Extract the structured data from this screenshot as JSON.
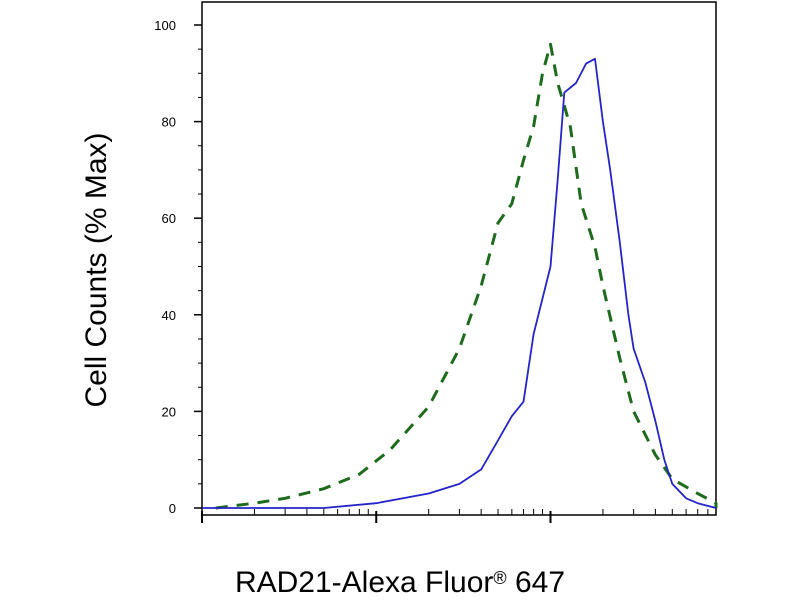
{
  "chart_data": {
    "type": "line",
    "title": "",
    "xlabel": "RAD21-Alexa Fluor",
    "xlabel_superscript": "®",
    "xlabel_suffix": " 647",
    "ylabel": "Cell Counts (% Max)",
    "xscale": "log",
    "xlim": [
      1,
      10000
    ],
    "ylim": [
      0,
      100
    ],
    "yticks": [
      0,
      20,
      40,
      60,
      80,
      100
    ],
    "ytick_labels": [
      "0",
      "20",
      "40",
      "60",
      "80",
      "100"
    ],
    "grid": false,
    "legend": "none",
    "series": [
      {
        "style": "dashed",
        "color": "#1e6b1e",
        "x": [
          1.2,
          2,
          3,
          5,
          8,
          12,
          20,
          30,
          40,
          50,
          60,
          70,
          80,
          90,
          100,
          110,
          130,
          150,
          180,
          200,
          250,
          300,
          400,
          500,
          700,
          1000,
          1500,
          2000,
          3000
        ],
        "y": [
          0,
          1,
          2,
          4,
          7,
          12,
          21,
          33,
          46,
          59,
          63,
          72,
          79,
          90,
          96,
          88,
          79,
          63,
          54,
          46,
          31,
          20,
          11,
          6,
          3,
          1,
          0.5,
          0,
          0
        ]
      },
      {
        "style": "solid",
        "color": "#2424c8",
        "x": [
          1,
          5,
          10,
          20,
          30,
          40,
          50,
          60,
          70,
          80,
          100,
          110,
          120,
          140,
          160,
          180,
          200,
          220,
          250,
          280,
          300,
          350,
          400,
          450,
          500,
          600,
          700,
          1000,
          1500,
          2000,
          3000,
          10000
        ],
        "y": [
          0,
          0,
          1,
          3,
          5,
          8,
          14,
          19,
          22,
          36,
          50,
          68,
          86,
          88,
          92,
          93,
          80,
          70,
          55,
          40,
          33,
          26,
          18,
          10,
          5,
          2,
          1,
          0,
          0,
          0,
          0,
          0
        ]
      }
    ]
  }
}
